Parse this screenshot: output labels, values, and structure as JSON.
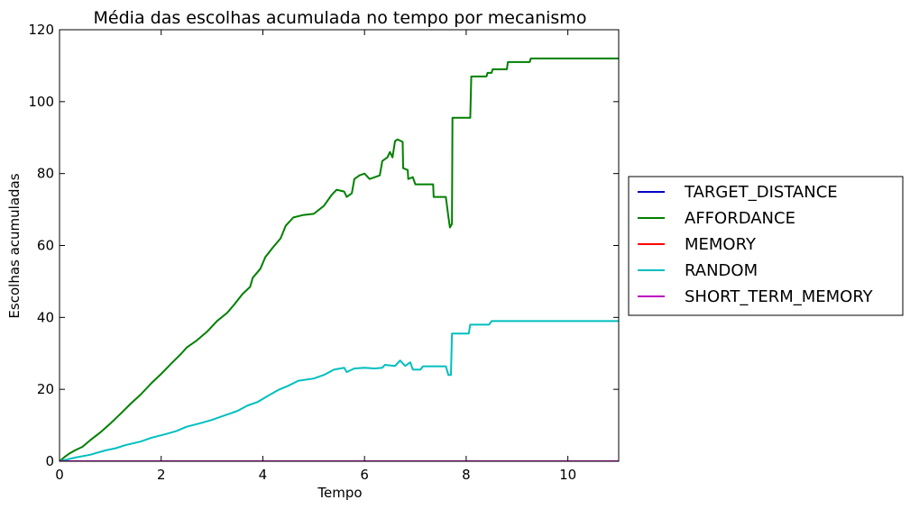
{
  "chart_data": {
    "type": "line",
    "title": "Média  das escolhas acumulada no tempo por mecanismo",
    "xlabel": "Tempo",
    "ylabel": "Escolhas acumuladas",
    "xlim": [
      0,
      11
    ],
    "ylim": [
      0,
      120
    ],
    "xticks": [
      "0",
      "2",
      "4",
      "6",
      "8",
      "10"
    ],
    "xtick_values": [
      0,
      2,
      4,
      6,
      8,
      10
    ],
    "yticks": [
      "0",
      "20",
      "40",
      "60",
      "80",
      "100",
      "120"
    ],
    "ytick_values": [
      0,
      20,
      40,
      60,
      80,
      100,
      120
    ],
    "grid": false,
    "legend_position": "outside-right",
    "series": [
      {
        "name": "TARGET_DISTANCE",
        "color": "#0000bf",
        "points": [
          [
            0,
            0
          ],
          [
            11,
            0
          ]
        ]
      },
      {
        "name": "AFFORDANCE",
        "color": "#008000",
        "points": [
          [
            0,
            0
          ],
          [
            0.1,
            1.2
          ],
          [
            0.2,
            2.2
          ],
          [
            0.3,
            3.0
          ],
          [
            0.45,
            4.0
          ],
          [
            0.6,
            5.8
          ],
          [
            0.8,
            8.0
          ],
          [
            1.0,
            10.5
          ],
          [
            1.2,
            13.2
          ],
          [
            1.4,
            16.0
          ],
          [
            1.6,
            18.6
          ],
          [
            1.8,
            21.6
          ],
          [
            2.0,
            24.3
          ],
          [
            2.2,
            27.2
          ],
          [
            2.4,
            30.0
          ],
          [
            2.5,
            31.6
          ],
          [
            2.7,
            33.6
          ],
          [
            2.9,
            36.0
          ],
          [
            3.1,
            39.0
          ],
          [
            3.3,
            41.3
          ],
          [
            3.45,
            43.8
          ],
          [
            3.6,
            46.5
          ],
          [
            3.75,
            48.5
          ],
          [
            3.8,
            51.0
          ],
          [
            3.95,
            53.5
          ],
          [
            4.05,
            56.8
          ],
          [
            4.2,
            59.5
          ],
          [
            4.35,
            62.0
          ],
          [
            4.45,
            65.5
          ],
          [
            4.6,
            67.8
          ],
          [
            4.8,
            68.5
          ],
          [
            5.0,
            68.8
          ],
          [
            5.2,
            71.0
          ],
          [
            5.35,
            74.0
          ],
          [
            5.45,
            75.5
          ],
          [
            5.6,
            75.0
          ],
          [
            5.65,
            73.5
          ],
          [
            5.75,
            74.5
          ],
          [
            5.8,
            78.5
          ],
          [
            5.9,
            79.5
          ],
          [
            6.0,
            80.0
          ],
          [
            6.1,
            78.5
          ],
          [
            6.2,
            79.0
          ],
          [
            6.3,
            79.5
          ],
          [
            6.35,
            83.5
          ],
          [
            6.45,
            84.5
          ],
          [
            6.5,
            86.0
          ],
          [
            6.55,
            84.5
          ],
          [
            6.6,
            89.0
          ],
          [
            6.65,
            89.5
          ],
          [
            6.75,
            88.8
          ],
          [
            6.76,
            81.5
          ],
          [
            6.85,
            81.0
          ],
          [
            6.86,
            78.5
          ],
          [
            6.95,
            79.0
          ],
          [
            7.0,
            77.0
          ],
          [
            7.35,
            77.0
          ],
          [
            7.36,
            73.5
          ],
          [
            7.6,
            73.5
          ],
          [
            7.65,
            68.0
          ],
          [
            7.68,
            65.0
          ],
          [
            7.72,
            66.0
          ],
          [
            7.73,
            95.5
          ],
          [
            8.08,
            95.5
          ],
          [
            8.1,
            107.0
          ],
          [
            8.4,
            107.0
          ],
          [
            8.42,
            108.0
          ],
          [
            8.5,
            108.0
          ],
          [
            8.52,
            109.0
          ],
          [
            8.8,
            109.0
          ],
          [
            8.82,
            111.0
          ],
          [
            9.25,
            111.0
          ],
          [
            9.27,
            112.0
          ],
          [
            11.0,
            112.0
          ]
        ]
      },
      {
        "name": "MEMORY",
        "color": "#ff0000",
        "points": [
          [
            0,
            0
          ],
          [
            11,
            0
          ]
        ]
      },
      {
        "name": "RANDOM",
        "color": "#00bfbf",
        "points": [
          [
            0,
            0
          ],
          [
            0.3,
            1.0
          ],
          [
            0.6,
            1.8
          ],
          [
            0.9,
            3.0
          ],
          [
            1.1,
            3.6
          ],
          [
            1.3,
            4.5
          ],
          [
            1.6,
            5.5
          ],
          [
            1.8,
            6.5
          ],
          [
            2.1,
            7.6
          ],
          [
            2.3,
            8.4
          ],
          [
            2.5,
            9.6
          ],
          [
            2.8,
            10.7
          ],
          [
            3.0,
            11.5
          ],
          [
            3.3,
            13.0
          ],
          [
            3.5,
            14.0
          ],
          [
            3.7,
            15.5
          ],
          [
            3.9,
            16.5
          ],
          [
            4.1,
            18.2
          ],
          [
            4.3,
            19.8
          ],
          [
            4.5,
            21.0
          ],
          [
            4.7,
            22.4
          ],
          [
            5.0,
            23.0
          ],
          [
            5.2,
            24.0
          ],
          [
            5.4,
            25.5
          ],
          [
            5.6,
            26.0
          ],
          [
            5.65,
            24.8
          ],
          [
            5.8,
            25.8
          ],
          [
            6.0,
            26.0
          ],
          [
            6.2,
            25.8
          ],
          [
            6.35,
            26.0
          ],
          [
            6.4,
            26.8
          ],
          [
            6.6,
            26.5
          ],
          [
            6.7,
            28.0
          ],
          [
            6.8,
            26.5
          ],
          [
            6.9,
            27.5
          ],
          [
            6.95,
            25.5
          ],
          [
            7.1,
            25.5
          ],
          [
            7.15,
            26.4
          ],
          [
            7.6,
            26.4
          ],
          [
            7.65,
            24.0
          ],
          [
            7.7,
            24.0
          ],
          [
            7.72,
            35.5
          ],
          [
            8.05,
            35.5
          ],
          [
            8.08,
            38.0
          ],
          [
            8.45,
            38.0
          ],
          [
            8.5,
            39.0
          ],
          [
            11.0,
            39.0
          ]
        ]
      },
      {
        "name": "SHORT_TERM_MEMORY",
        "color": "#bf00bf",
        "points": [
          [
            0,
            0
          ],
          [
            11,
            0
          ]
        ]
      }
    ]
  }
}
